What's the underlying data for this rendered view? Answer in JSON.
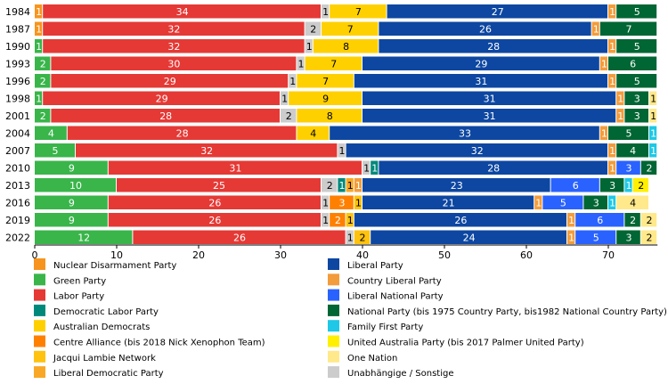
{
  "chart_data": {
    "type": "bar",
    "orientation": "horizontal",
    "stacked": true,
    "title": "",
    "xlabel": "",
    "ylabel": "",
    "xlim": [
      0,
      76
    ],
    "xticks": [
      0,
      10,
      20,
      30,
      40,
      50,
      60,
      70
    ],
    "grid": false,
    "legend_position": "bottom",
    "categories": [
      "1984",
      "1987",
      "1990",
      "1993",
      "1996",
      "1998",
      "2001",
      "2004",
      "2007",
      "2010",
      "2013",
      "2016",
      "2019",
      "2022"
    ],
    "series": [
      {
        "name": "Nuclear Disarmament Party",
        "color": "#f7941d",
        "values": [
          1,
          1,
          0,
          0,
          0,
          0,
          0,
          0,
          0,
          0,
          0,
          0,
          0,
          0
        ]
      },
      {
        "name": "Green Party",
        "color": "#39b54a",
        "values": [
          0,
          0,
          1,
          2,
          2,
          1,
          2,
          4,
          5,
          9,
          10,
          9,
          9,
          12
        ]
      },
      {
        "name": "Labor Party",
        "color": "#e53935",
        "values": [
          34,
          32,
          32,
          30,
          29,
          29,
          28,
          28,
          32,
          31,
          25,
          26,
          26,
          26
        ]
      },
      {
        "name": "Democratic Labor Party",
        "color": "#00897b",
        "values": [
          0,
          0,
          0,
          0,
          0,
          0,
          0,
          0,
          0,
          1,
          1,
          0,
          0,
          0
        ]
      },
      {
        "name": "Australian Democrats",
        "color": "#ffd000",
        "values": [
          7,
          7,
          8,
          7,
          7,
          9,
          8,
          4,
          0,
          0,
          0,
          0,
          0,
          0
        ]
      },
      {
        "name": "Centre Alliance (bis 2018 Nick Xenophon Team)",
        "color": "#ff8000",
        "values": [
          0,
          0,
          0,
          0,
          0,
          0,
          0,
          0,
          0,
          0,
          0,
          3,
          2,
          0
        ]
      },
      {
        "name": "Jacqui Lambie Network",
        "color": "#ffc20e",
        "values": [
          0,
          0,
          0,
          0,
          0,
          0,
          0,
          0,
          0,
          0,
          0,
          1,
          1,
          2
        ]
      },
      {
        "name": "Liberal Democratic Party",
        "color": "#f9a825",
        "values": [
          0,
          0,
          0,
          0,
          0,
          0,
          0,
          0,
          0,
          0,
          1,
          0,
          0,
          0
        ]
      },
      {
        "name": "Liberal Party",
        "color": "#0d47a1",
        "values": [
          27,
          26,
          28,
          29,
          31,
          31,
          31,
          33,
          32,
          28,
          23,
          21,
          26,
          24
        ]
      },
      {
        "name": "Country Liberal Party",
        "color": "#f39c3b",
        "values": [
          1,
          1,
          1,
          1,
          1,
          1,
          1,
          1,
          1,
          1,
          1,
          1,
          1,
          1
        ]
      },
      {
        "name": "Liberal National Party",
        "color": "#2962ff",
        "values": [
          0,
          0,
          0,
          0,
          0,
          0,
          0,
          0,
          0,
          3,
          6,
          5,
          6,
          5
        ]
      },
      {
        "name": "National Party (bis 1975 Country Party, bis1982 National Country Party)",
        "color": "#006633",
        "values": [
          5,
          7,
          5,
          6,
          5,
          3,
          3,
          5,
          4,
          2,
          3,
          3,
          2,
          3
        ]
      },
      {
        "name": "Family First Party",
        "color": "#1ec8e6",
        "values": [
          0,
          0,
          0,
          0,
          0,
          0,
          0,
          1,
          1,
          0,
          1,
          1,
          0,
          0
        ]
      },
      {
        "name": "United Australia Party (bis 2017 Palmer United Party)",
        "color": "#ffef00",
        "values": [
          0,
          0,
          0,
          0,
          0,
          0,
          0,
          0,
          0,
          0,
          2,
          0,
          0,
          0
        ]
      },
      {
        "name": "One Nation",
        "color": "#ffe98a",
        "values": [
          0,
          0,
          0,
          0,
          0,
          1,
          1,
          0,
          0,
          0,
          0,
          4,
          2,
          2
        ]
      },
      {
        "name": "Unabhängige / Sonstige",
        "color": "#cccccc",
        "values": [
          1,
          2,
          1,
          1,
          1,
          1,
          2,
          0,
          1,
          1,
          2,
          1,
          1,
          1
        ]
      }
    ],
    "stack_order": [
      [
        "Nuclear Disarmament Party",
        "Labor Party",
        "Unabhängige / Sonstige",
        "Australian Democrats",
        "Liberal Party",
        "Country Liberal Party",
        "National Party (bis 1975 Country Party, bis1982 National Country Party)"
      ],
      [
        "Nuclear Disarmament Party",
        "Labor Party",
        "Unabhängige / Sonstige",
        "Australian Democrats",
        "Liberal Party",
        "Country Liberal Party",
        "National Party (bis 1975 Country Party, bis1982 National Country Party)"
      ],
      [
        "Green Party",
        "Labor Party",
        "Unabhängige / Sonstige",
        "Australian Democrats",
        "Liberal Party",
        "Country Liberal Party",
        "National Party (bis 1975 Country Party, bis1982 National Country Party)"
      ],
      [
        "Green Party",
        "Labor Party",
        "Unabhängige / Sonstige",
        "Australian Democrats",
        "Liberal Party",
        "Country Liberal Party",
        "National Party (bis 1975 Country Party, bis1982 National Country Party)"
      ],
      [
        "Green Party",
        "Labor Party",
        "Unabhängige / Sonstige",
        "Australian Democrats",
        "Liberal Party",
        "Country Liberal Party",
        "National Party (bis 1975 Country Party, bis1982 National Country Party)"
      ],
      [
        "Green Party",
        "Labor Party",
        "Unabhängige / Sonstige",
        "Australian Democrats",
        "Liberal Party",
        "Country Liberal Party",
        "National Party (bis 1975 Country Party, bis1982 National Country Party)",
        "One Nation"
      ],
      [
        "Green Party",
        "Labor Party",
        "Unabhängige / Sonstige",
        "Australian Democrats",
        "Liberal Party",
        "Country Liberal Party",
        "National Party (bis 1975 Country Party, bis1982 National Country Party)",
        "One Nation"
      ],
      [
        "Green Party",
        "Labor Party",
        "Australian Democrats",
        "Liberal Party",
        "Country Liberal Party",
        "National Party (bis 1975 Country Party, bis1982 National Country Party)",
        "Family First Party"
      ],
      [
        "Green Party",
        "Labor Party",
        "Unabhängige / Sonstige",
        "Liberal Party",
        "Country Liberal Party",
        "National Party (bis 1975 Country Party, bis1982 National Country Party)",
        "Family First Party"
      ],
      [
        "Green Party",
        "Labor Party",
        "Unabhängige / Sonstige",
        "Democratic Labor Party",
        "Liberal Party",
        "Country Liberal Party",
        "Liberal National Party",
        "National Party (bis 1975 Country Party, bis1982 National Country Party)"
      ],
      [
        "Green Party",
        "Labor Party",
        "Unabhängige / Sonstige",
        "Democratic Labor Party",
        "Liberal Democratic Party",
        "Country Liberal Party",
        "Liberal Party",
        "Country Liberal Party",
        "Liberal National Party",
        "National Party (bis 1975 Country Party, bis1982 National Country Party)",
        "Family First Party",
        "United Australia Party (bis 2017 Palmer United Party)"
      ],
      [
        "Green Party",
        "Labor Party",
        "Unabhängige / Sonstige",
        "Centre Alliance (bis 2018 Nick Xenophon Team)",
        "Jacqui Lambie Network",
        "Liberal Party",
        "Country Liberal Party",
        "Liberal National Party",
        "National Party (bis 1975 Country Party, bis1982 National Country Party)",
        "Family First Party",
        "One Nation"
      ],
      [
        "Green Party",
        "Labor Party",
        "Unabhängige / Sonstige",
        "Centre Alliance (bis 2018 Nick Xenophon Team)",
        "Jacqui Lambie Network",
        "Liberal Party",
        "Country Liberal Party",
        "Liberal National Party",
        "National Party (bis 1975 Country Party, bis1982 National Country Party)",
        "One Nation"
      ],
      [
        "Green Party",
        "Labor Party",
        "Unabhängige / Sonstige",
        "Jacqui Lambie Network",
        "Liberal Party",
        "Country Liberal Party",
        "Liberal National Party",
        "National Party (bis 1975 Country Party, bis1982 National Country Party)",
        "One Nation"
      ]
    ],
    "legend": [
      "Nuclear Disarmament Party",
      "Green Party",
      "Labor Party",
      "Democratic Labor Party",
      "Australian Democrats",
      "Centre Alliance (bis 2018 Nick Xenophon Team)",
      "Jacqui Lambie Network",
      "Liberal Democratic Party",
      "Liberal Party",
      "Country Liberal Party",
      "Liberal National Party",
      "National Party (bis 1975 Country Party, bis1982 National Country Party)",
      "Family First Party",
      "United Australia Party (bis 2017 Palmer United Party)",
      "One Nation",
      "Unabhängige / Sonstige"
    ]
  }
}
